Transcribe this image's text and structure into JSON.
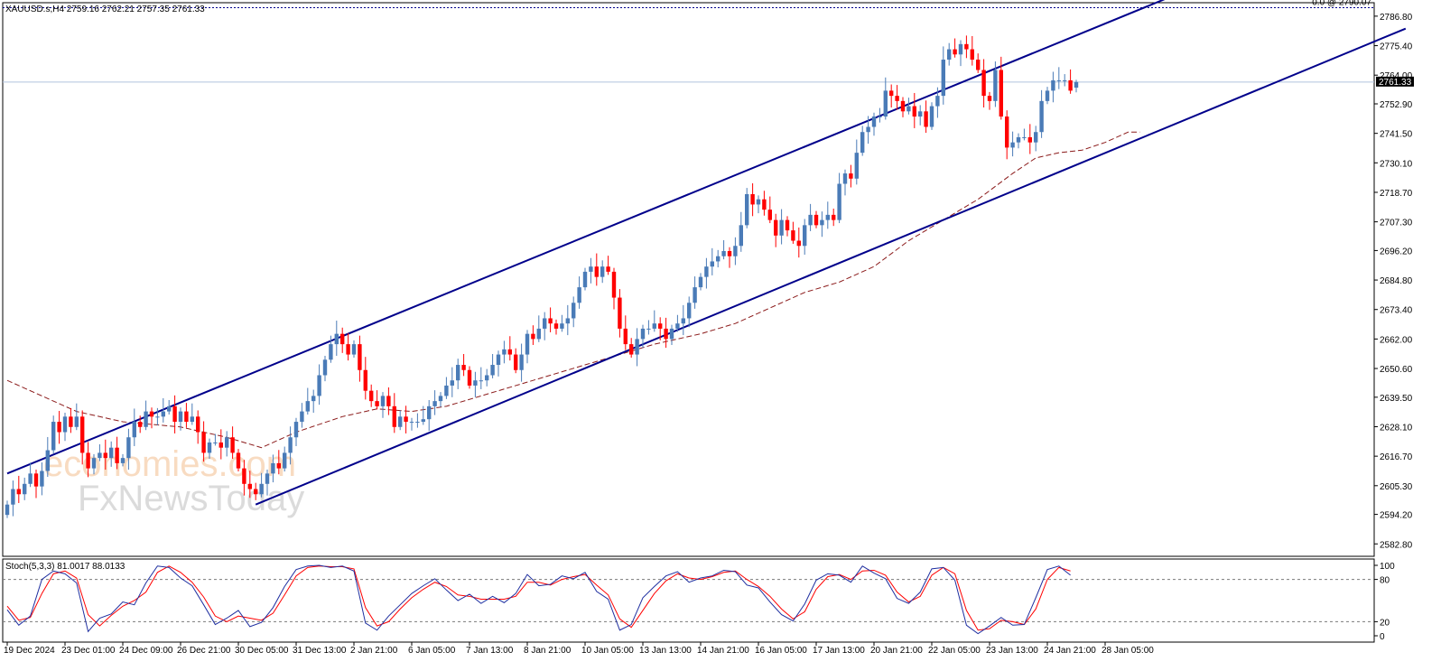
{
  "header": {
    "symbol_line": "XAUUSD.s,H4  2759.16 2762.21 2757.35 2761.33",
    "fib_label": "0.0 @ 2790.07",
    "current_price_label": "2761.33"
  },
  "oscillator": {
    "label": "Stoch(5,3,3) 81.0017 88.0133",
    "ticks": [
      "100",
      "80",
      "20",
      "0"
    ],
    "levels": [
      80,
      20
    ]
  },
  "watermark": {
    "line1": "economies.com",
    "line2": "FxNewsToday"
  },
  "colors": {
    "bull": "#4a7bb7",
    "bear": "#ff0000",
    "channel": "#00008b",
    "ma": "#8b1a1a",
    "stoch_main": "#1f2fa0",
    "stoch_signal": "#ff0000",
    "level_line": "#7a7a7a"
  },
  "chart_data": {
    "type": "candlestick",
    "symbol": "XAUUSD.s",
    "timeframe": "H4",
    "last_bar": {
      "open": 2759.16,
      "high": 2762.21,
      "low": 2757.35,
      "close": 2761.33
    },
    "ylim": [
      2578,
      2792
    ],
    "y_ticks": [
      "2786.80",
      "2775.40",
      "2764.00",
      "2752.90",
      "2741.50",
      "2730.10",
      "2718.70",
      "2707.30",
      "2696.20",
      "2684.80",
      "2673.40",
      "2662.00",
      "2650.60",
      "2639.50",
      "2628.10",
      "2616.70",
      "2605.30",
      "2594.20",
      "2582.80"
    ],
    "x_ticks": [
      {
        "bar": 0,
        "label": "19 Dec 2024"
      },
      {
        "bar": 10,
        "label": "23 Dec 01:00"
      },
      {
        "bar": 20,
        "label": "24 Dec 09:00"
      },
      {
        "bar": 30,
        "label": "26 Dec 21:00"
      },
      {
        "bar": 40,
        "label": "30 Dec 05:00"
      },
      {
        "bar": 50,
        "label": "31 Dec 13:00"
      },
      {
        "bar": 60,
        "label": "2 Jan 21:00"
      },
      {
        "bar": 70,
        "label": "6 Jan 05:00"
      },
      {
        "bar": 80,
        "label": "7 Jan 13:00"
      },
      {
        "bar": 90,
        "label": "8 Jan 21:00"
      },
      {
        "bar": 100,
        "label": "10 Jan 05:00"
      },
      {
        "bar": 110,
        "label": "13 Jan 13:00"
      },
      {
        "bar": 120,
        "label": "14 Jan 21:00"
      },
      {
        "bar": 130,
        "label": "16 Jan 05:00"
      },
      {
        "bar": 140,
        "label": "17 Jan 13:00"
      },
      {
        "bar": 150,
        "label": "20 Jan 21:00"
      },
      {
        "bar": 160,
        "label": "22 Jan 05:00"
      },
      {
        "bar": 170,
        "label": "23 Jan 13:00"
      },
      {
        "bar": 180,
        "label": "24 Jan 21:00"
      },
      {
        "bar": 190,
        "label": "28 Jan 05:00"
      }
    ],
    "fib_level": 2790.07,
    "current_price": 2761.33,
    "channel_upper": [
      [
        0,
        2610
      ],
      [
        201,
        2794
      ]
    ],
    "channel_lower": [
      [
        43,
        2598
      ],
      [
        242,
        2782
      ]
    ],
    "closes": [
      2598,
      2604,
      2602,
      2606,
      2610,
      2605,
      2611,
      2619,
      2630,
      2626,
      2632,
      2628,
      2632,
      2618,
      2612,
      2616,
      2618,
      2616,
      2620,
      2614,
      2616,
      2624,
      2630,
      2628,
      2634,
      2632,
      2632,
      2634,
      2636,
      2630,
      2634,
      2630,
      2632,
      2626,
      2618,
      2622,
      2622,
      2620,
      2624,
      2618,
      2612,
      2606,
      2604,
      2602,
      2606,
      2610,
      2614,
      2612,
      2618,
      2624,
      2630,
      2634,
      2638,
      2640,
      2648,
      2654,
      2660,
      2664,
      2660,
      2656,
      2660,
      2650,
      2642,
      2638,
      2636,
      2640,
      2636,
      2628,
      2632,
      2630,
      2630,
      2630,
      2631,
      2636,
      2638,
      2640,
      2644,
      2646,
      2652,
      2650,
      2644,
      2646,
      2646,
      2648,
      2652,
      2656,
      2658,
      2656,
      2650,
      2656,
      2664,
      2662,
      2666,
      2670,
      2668,
      2666,
      2668,
      2670,
      2676,
      2682,
      2688,
      2690,
      2686,
      2690,
      2688,
      2678,
      2666,
      2660,
      2656,
      2662,
      2666,
      2666,
      2668,
      2666,
      2662,
      2666,
      2668,
      2670,
      2676,
      2682,
      2686,
      2690,
      2692,
      2694,
      2696,
      2694,
      2698,
      2706,
      2718,
      2714,
      2716,
      2712,
      2708,
      2702,
      2708,
      2704,
      2700,
      2698,
      2706,
      2710,
      2706,
      2708,
      2710,
      2708,
      2722,
      2726,
      2724,
      2734,
      2742,
      2744,
      2748,
      2748,
      2758,
      2756,
      2754,
      2750,
      2752,
      2748,
      2750,
      2744,
      2752,
      2756,
      2770,
      2774,
      2772,
      2776,
      2774,
      2770,
      2766,
      2756,
      2754,
      2766,
      2748,
      2736,
      2738,
      2740,
      2740,
      2738,
      2742,
      2754,
      2758,
      2762,
      2762,
      2762,
      2758,
      2761.33
    ],
    "ma": [
      [
        0,
        2646
      ],
      [
        6,
        2640
      ],
      [
        12,
        2634
      ],
      [
        20,
        2630
      ],
      [
        30,
        2628
      ],
      [
        38,
        2624
      ],
      [
        44,
        2620
      ],
      [
        50,
        2626
      ],
      [
        58,
        2632
      ],
      [
        64,
        2635
      ],
      [
        70,
        2634
      ],
      [
        76,
        2636
      ],
      [
        82,
        2640
      ],
      [
        88,
        2644
      ],
      [
        94,
        2648
      ],
      [
        100,
        2652
      ],
      [
        106,
        2656
      ],
      [
        112,
        2660
      ],
      [
        120,
        2664
      ],
      [
        126,
        2668
      ],
      [
        132,
        2674
      ],
      [
        138,
        2680
      ],
      [
        144,
        2684
      ],
      [
        150,
        2690
      ],
      [
        156,
        2700
      ],
      [
        162,
        2708
      ],
      [
        168,
        2716
      ],
      [
        174,
        2726
      ],
      [
        178,
        2732
      ],
      [
        182,
        2734
      ],
      [
        186,
        2735
      ],
      [
        190,
        2738
      ],
      [
        194,
        2742
      ],
      [
        196,
        2742
      ]
    ],
    "stoch_k": [
      [
        0,
        37
      ],
      [
        2,
        15
      ],
      [
        4,
        28
      ],
      [
        6,
        80
      ],
      [
        8,
        92
      ],
      [
        10,
        88
      ],
      [
        12,
        75
      ],
      [
        14,
        6
      ],
      [
        16,
        25
      ],
      [
        18,
        31
      ],
      [
        20,
        48
      ],
      [
        22,
        44
      ],
      [
        24,
        75
      ],
      [
        26,
        99
      ],
      [
        28,
        97
      ],
      [
        30,
        82
      ],
      [
        32,
        71
      ],
      [
        34,
        44
      ],
      [
        36,
        16
      ],
      [
        38,
        25
      ],
      [
        40,
        36
      ],
      [
        42,
        13
      ],
      [
        44,
        19
      ],
      [
        46,
        40
      ],
      [
        48,
        70
      ],
      [
        50,
        94
      ],
      [
        52,
        99
      ],
      [
        54,
        100
      ],
      [
        56,
        97
      ],
      [
        58,
        99
      ],
      [
        60,
        92
      ],
      [
        62,
        18
      ],
      [
        64,
        8
      ],
      [
        66,
        28
      ],
      [
        68,
        44
      ],
      [
        70,
        60
      ],
      [
        72,
        71
      ],
      [
        74,
        81
      ],
      [
        76,
        65
      ],
      [
        78,
        50
      ],
      [
        80,
        59
      ],
      [
        82,
        46
      ],
      [
        84,
        56
      ],
      [
        86,
        47
      ],
      [
        88,
        60
      ],
      [
        90,
        87
      ],
      [
        92,
        71
      ],
      [
        94,
        73
      ],
      [
        96,
        85
      ],
      [
        98,
        81
      ],
      [
        100,
        90
      ],
      [
        102,
        63
      ],
      [
        104,
        52
      ],
      [
        106,
        8
      ],
      [
        108,
        16
      ],
      [
        110,
        54
      ],
      [
        112,
        70
      ],
      [
        114,
        85
      ],
      [
        116,
        91
      ],
      [
        118,
        76
      ],
      [
        120,
        82
      ],
      [
        122,
        85
      ],
      [
        124,
        93
      ],
      [
        126,
        91
      ],
      [
        128,
        72
      ],
      [
        130,
        68
      ],
      [
        132,
        48
      ],
      [
        134,
        30
      ],
      [
        136,
        21
      ],
      [
        138,
        45
      ],
      [
        140,
        79
      ],
      [
        142,
        88
      ],
      [
        144,
        86
      ],
      [
        146,
        76
      ],
      [
        148,
        99
      ],
      [
        150,
        89
      ],
      [
        152,
        81
      ],
      [
        154,
        53
      ],
      [
        156,
        46
      ],
      [
        158,
        62
      ],
      [
        160,
        95
      ],
      [
        162,
        97
      ],
      [
        164,
        79
      ],
      [
        166,
        15
      ],
      [
        168,
        3
      ],
      [
        170,
        14
      ],
      [
        172,
        26
      ],
      [
        174,
        15
      ],
      [
        176,
        16
      ],
      [
        178,
        54
      ],
      [
        180,
        94
      ],
      [
        182,
        99
      ],
      [
        184,
        86
      ]
    ],
    "stoch_d": [
      [
        0,
        42
      ],
      [
        2,
        22
      ],
      [
        4,
        26
      ],
      [
        6,
        60
      ],
      [
        8,
        88
      ],
      [
        10,
        92
      ],
      [
        12,
        82
      ],
      [
        14,
        30
      ],
      [
        16,
        14
      ],
      [
        18,
        29
      ],
      [
        20,
        42
      ],
      [
        22,
        50
      ],
      [
        24,
        62
      ],
      [
        26,
        90
      ],
      [
        28,
        99
      ],
      [
        30,
        90
      ],
      [
        32,
        76
      ],
      [
        34,
        55
      ],
      [
        36,
        28
      ],
      [
        38,
        20
      ],
      [
        40,
        28
      ],
      [
        42,
        25
      ],
      [
        44,
        22
      ],
      [
        46,
        32
      ],
      [
        48,
        58
      ],
      [
        50,
        85
      ],
      [
        52,
        97
      ],
      [
        54,
        99
      ],
      [
        56,
        98
      ],
      [
        58,
        98
      ],
      [
        60,
        95
      ],
      [
        62,
        40
      ],
      [
        64,
        14
      ],
      [
        66,
        20
      ],
      [
        68,
        38
      ],
      [
        70,
        54
      ],
      [
        72,
        66
      ],
      [
        74,
        76
      ],
      [
        76,
        70
      ],
      [
        78,
        58
      ],
      [
        80,
        56
      ],
      [
        82,
        52
      ],
      [
        84,
        52
      ],
      [
        86,
        52
      ],
      [
        88,
        56
      ],
      [
        90,
        76
      ],
      [
        92,
        76
      ],
      [
        94,
        72
      ],
      [
        96,
        80
      ],
      [
        98,
        84
      ],
      [
        100,
        87
      ],
      [
        102,
        72
      ],
      [
        104,
        58
      ],
      [
        106,
        24
      ],
      [
        108,
        12
      ],
      [
        110,
        36
      ],
      [
        112,
        60
      ],
      [
        114,
        78
      ],
      [
        116,
        88
      ],
      [
        118,
        82
      ],
      [
        120,
        80
      ],
      [
        122,
        84
      ],
      [
        124,
        90
      ],
      [
        126,
        92
      ],
      [
        128,
        80
      ],
      [
        130,
        70
      ],
      [
        132,
        56
      ],
      [
        134,
        38
      ],
      [
        136,
        24
      ],
      [
        138,
        34
      ],
      [
        140,
        66
      ],
      [
        142,
        84
      ],
      [
        144,
        87
      ],
      [
        146,
        80
      ],
      [
        148,
        92
      ],
      [
        150,
        93
      ],
      [
        152,
        86
      ],
      [
        154,
        62
      ],
      [
        156,
        48
      ],
      [
        158,
        56
      ],
      [
        160,
        86
      ],
      [
        162,
        97
      ],
      [
        164,
        88
      ],
      [
        166,
        36
      ],
      [
        168,
        8
      ],
      [
        170,
        10
      ],
      [
        172,
        22
      ],
      [
        174,
        20
      ],
      [
        176,
        16
      ],
      [
        178,
        38
      ],
      [
        180,
        80
      ],
      [
        182,
        97
      ],
      [
        184,
        92
      ]
    ]
  }
}
